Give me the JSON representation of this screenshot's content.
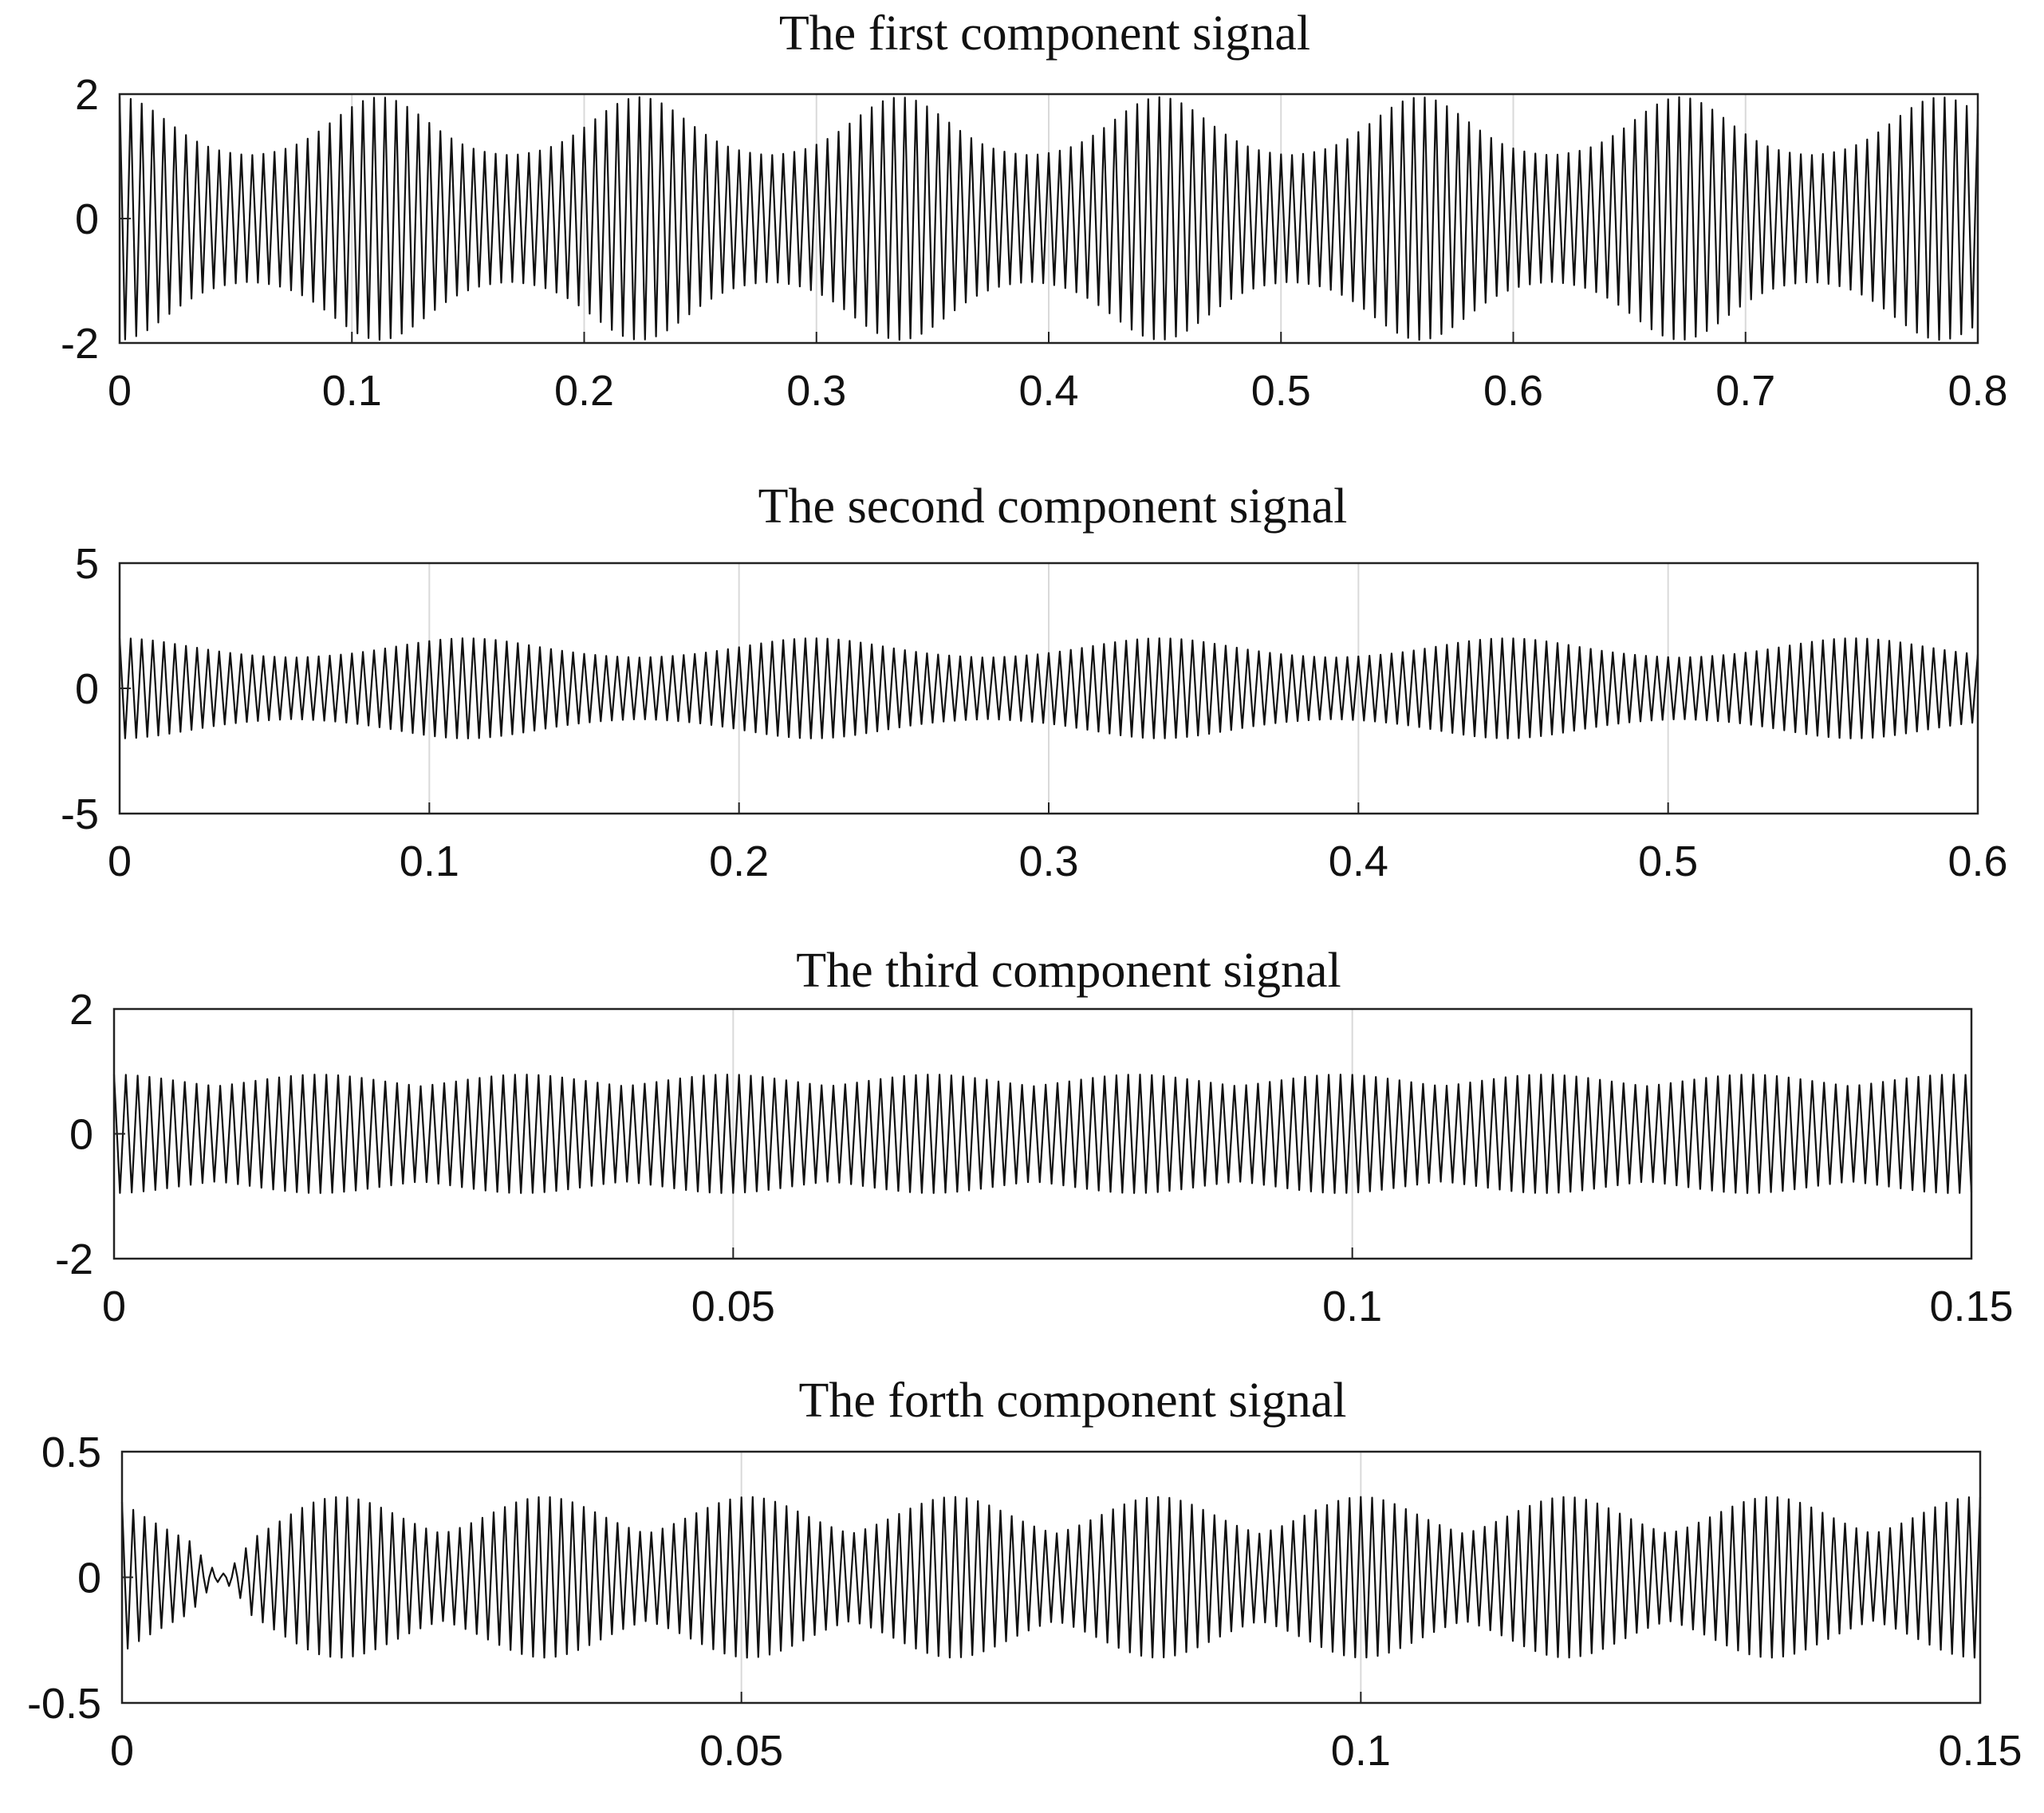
{
  "chart_data": [
    {
      "type": "line",
      "title": "The first component signal",
      "xlabel": "",
      "ylabel": "",
      "xlim": [
        0,
        0.8
      ],
      "ylim": [
        -2,
        2
      ],
      "xticks": [
        0,
        0.1,
        0.2,
        0.3,
        0.4,
        0.5,
        0.6,
        0.7,
        0.8
      ],
      "xtick_labels": [
        "0",
        "0.1",
        "0.2",
        "0.3",
        "0.4",
        "0.5",
        "0.6",
        "0.7",
        "0.8"
      ],
      "yticks": [
        -2,
        0,
        2
      ],
      "ytick_labels": [
        "-2",
        "0",
        "2"
      ],
      "grid": "vertical",
      "series": [
        {
          "color": "#111111",
          "carrier_hz": 210,
          "envelope": {
            "base_amplitude": 1.0,
            "burst_amplitude": 1.95,
            "burst_period": 0.112,
            "first_burst_at": 0.0,
            "burst_width": 0.02
          }
        }
      ]
    },
    {
      "type": "line",
      "title": "The second component signal",
      "xlabel": "",
      "ylabel": "",
      "xlim": [
        0,
        0.6
      ],
      "ylim": [
        -5,
        5
      ],
      "xticks": [
        0,
        0.1,
        0.2,
        0.3,
        0.4,
        0.5,
        0.6
      ],
      "xtick_labels": [
        "0",
        "0.1",
        "0.2",
        "0.3",
        "0.4",
        "0.5",
        "0.6"
      ],
      "yticks": [
        -5,
        0,
        5
      ],
      "ytick_labels": [
        "-5",
        "0",
        "5"
      ],
      "grid": "vertical",
      "series": [
        {
          "color": "#111111",
          "carrier_hz": 280,
          "envelope": {
            "base_amplitude": 1.2,
            "burst_amplitude": 2.0,
            "burst_period": 0.112,
            "first_burst_at": 0.0,
            "burst_width": 0.022
          }
        }
      ]
    },
    {
      "type": "line",
      "title": "The third component signal",
      "xlabel": "",
      "ylabel": "",
      "xlim": [
        0,
        0.15
      ],
      "ylim": [
        -2,
        2
      ],
      "xticks": [
        0,
        0.05,
        0.1,
        0.15
      ],
      "xtick_labels": [
        "0",
        "0.05",
        "0.1",
        "0.15"
      ],
      "yticks": [
        -2,
        0,
        2
      ],
      "ytick_labels": [
        "-2",
        "0",
        "2"
      ],
      "grid": "vertical",
      "series": [
        {
          "color": "#111111",
          "carrier_hz": 1050,
          "envelope": {
            "base_amplitude": 0.7,
            "burst_amplitude": 0.95,
            "burst_period": 0.0165,
            "first_burst_at": 0.0,
            "burst_width": 0.005
          }
        }
      ]
    },
    {
      "type": "line",
      "title": "The forth component signal",
      "xlabel": "",
      "ylabel": "",
      "xlim": [
        0,
        0.15
      ],
      "ylim": [
        -0.5,
        0.5
      ],
      "xticks": [
        0,
        0.05,
        0.1,
        0.15
      ],
      "xtick_labels": [
        "0",
        "0.05",
        "0.1",
        "0.15"
      ],
      "yticks": [
        -0.5,
        0,
        0.5
      ],
      "ytick_labels": [
        "-0.5",
        "0",
        "0.5"
      ],
      "grid": "vertical",
      "series": [
        {
          "color": "#111111",
          "carrier_hz": 1100,
          "envelope": {
            "base_amplitude": 0.14,
            "burst_amplitude": 0.32,
            "burst_period": 0.0165,
            "first_burst_at": 0.0176,
            "burst_width": 0.0045,
            "start_amplitude": 0.3,
            "start_dip_at": 0.008
          }
        }
      ]
    }
  ]
}
